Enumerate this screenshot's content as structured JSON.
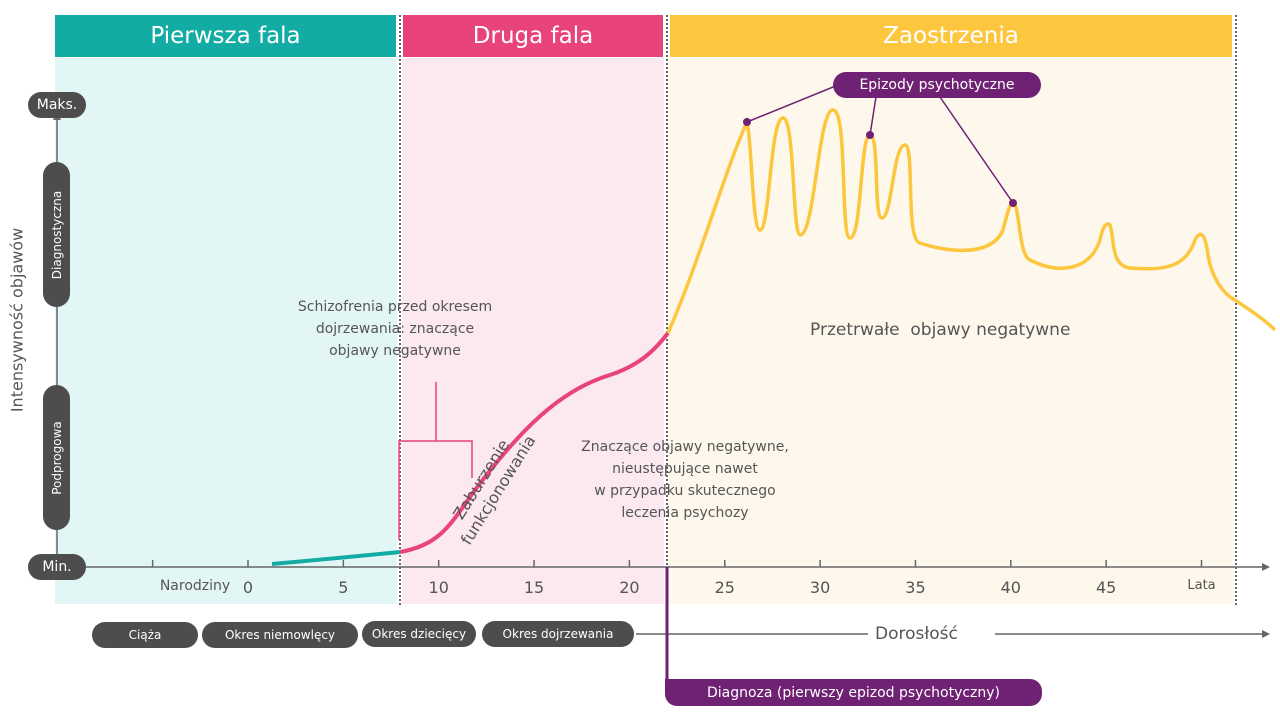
{
  "phases": [
    {
      "label": "Pierwsza fala",
      "color": "#13aca4"
    },
    {
      "label": "Druga fala",
      "color": "#e8437a"
    },
    {
      "label": "Zaostrzenia",
      "color": "#fcc73e"
    }
  ],
  "y_axis": {
    "title": "Intensywność objawów",
    "min": "Min.",
    "max": "Maks.",
    "bands": [
      "Podprogowa",
      "Diagnostyczna"
    ]
  },
  "x_axis": {
    "ticks": [
      "Narodziny",
      "0",
      "5",
      "10",
      "15",
      "20",
      "25",
      "30",
      "35",
      "40",
      "45",
      "Lata"
    ]
  },
  "life_stages": [
    "Ciąża",
    "Okres niemowlęcy",
    "Okres dziecięcy",
    "Okres dojrzewania"
  ],
  "adulthood": "Dorosłość",
  "notes": {
    "pre_puberty": [
      "Schizofrenia przed okresem",
      "dojrzewania: znaczące",
      "objawy negatywne"
    ],
    "dysfunction": [
      "Zaburzenie",
      "funkcjonowania"
    ],
    "persistent_negative": [
      "Znaczące objawy negatywne,",
      "nieustępujące nawet",
      "w przypadku skutecznego",
      "leczenia psychozy"
    ],
    "persistent": "Przetrwałe  objawy negatywne",
    "episodes": "Epizody psychotyczne",
    "diagnosis": "Diagnoza (pierwszy epizod psychotyczny)"
  },
  "colors": {
    "teal": "#13aca4",
    "pink": "#e8437a",
    "yellow": "#fcc73e",
    "purple": "#6f2273",
    "dark": "#4d4d4d"
  }
}
